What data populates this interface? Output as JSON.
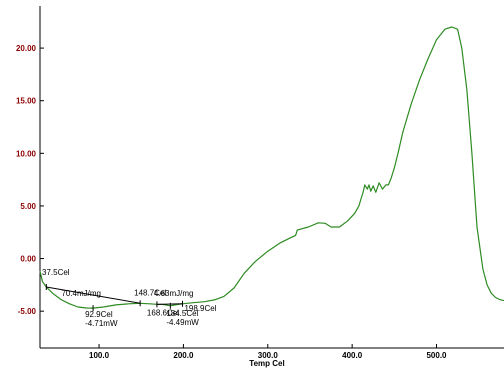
{
  "chart_data": {
    "type": "line",
    "xlabel": "Temp Cel",
    "ylabel": "",
    "xlim": [
      30,
      580
    ],
    "ylim": [
      -8.5,
      24
    ],
    "x_ticks": [
      "100.0",
      "200.0",
      "300.0",
      "400.0",
      "500.0"
    ],
    "x_tick_values": [
      100,
      200,
      300,
      400,
      500
    ],
    "y_ticks": [
      "20.00",
      "15.00",
      "10.00",
      "5.00",
      "0.00",
      "-5.00"
    ],
    "y_tick_values": [
      20,
      15,
      10,
      5,
      0,
      -5
    ],
    "colors": {
      "curve": "#2e8b22",
      "annotation": "#000000",
      "y_tick": "#8b0000"
    },
    "series": [
      {
        "x": [
          30,
          33,
          37.5,
          45,
          55,
          65,
          75,
          85,
          92.9,
          105,
          120,
          135,
          148.7,
          160,
          168.6,
          175,
          184.5,
          190,
          198.9,
          210,
          225,
          238,
          248,
          260,
          272,
          285,
          300,
          315,
          325,
          333,
          335,
          348,
          360,
          368,
          375,
          385,
          395,
          403,
          408,
          411,
          413,
          415,
          418,
          420,
          422,
          425,
          428,
          432,
          436,
          440,
          443,
          446,
          450,
          455,
          460,
          470,
          480,
          490,
          500,
          510,
          518,
          525,
          530,
          536,
          542,
          548,
          555,
          560,
          565,
          570,
          575,
          580
        ],
        "y": [
          -1.2,
          -2.2,
          -2.7,
          -3.3,
          -3.9,
          -4.3,
          -4.6,
          -4.7,
          -4.71,
          -4.6,
          -4.4,
          -4.3,
          -4.25,
          -4.3,
          -4.35,
          -4.35,
          -4.49,
          -4.4,
          -4.3,
          -4.2,
          -4.1,
          -3.9,
          -3.6,
          -2.8,
          -1.4,
          -0.3,
          0.7,
          1.5,
          1.9,
          2.2,
          2.7,
          3.0,
          3.4,
          3.35,
          3.0,
          3.0,
          3.6,
          4.3,
          5.0,
          5.8,
          6.3,
          7.0,
          6.6,
          7.0,
          6.4,
          6.9,
          6.3,
          7.2,
          6.6,
          7.0,
          7.0,
          7.6,
          8.6,
          10.2,
          12.0,
          14.7,
          17.0,
          19.0,
          20.8,
          21.8,
          22.0,
          21.8,
          20.0,
          16.0,
          10.0,
          3.0,
          -1.0,
          -2.5,
          -3.3,
          -3.7,
          -3.9,
          -4.0
        ]
      }
    ],
    "annotations": [
      {
        "kind": "point",
        "x": 37.5,
        "y": -2.7,
        "lines": [
          "37.5Cel"
        ]
      },
      {
        "kind": "region",
        "x1": 37.5,
        "x2": 148.7,
        "text": "70.4mJ/mg"
      },
      {
        "kind": "point",
        "x": 92.9,
        "y": -4.71,
        "lines": [
          "92.9Cel",
          "-4.71mW"
        ]
      },
      {
        "kind": "point",
        "x": 148.7,
        "y": -4.25,
        "lines": [
          "148.7Cel"
        ]
      },
      {
        "kind": "region",
        "x1": 168.6,
        "x2": 198.9,
        "text": "4.63mJ/mg"
      },
      {
        "kind": "point",
        "x": 168.6,
        "y": -4.35,
        "lines": [
          "168.6Cel"
        ]
      },
      {
        "kind": "point",
        "x": 184.5,
        "y": -4.49,
        "lines": [
          "184.5Cel",
          "-4.49mW"
        ]
      },
      {
        "kind": "point",
        "x": 198.9,
        "y": -4.3,
        "lines": [
          "198.9Cel"
        ]
      }
    ]
  }
}
